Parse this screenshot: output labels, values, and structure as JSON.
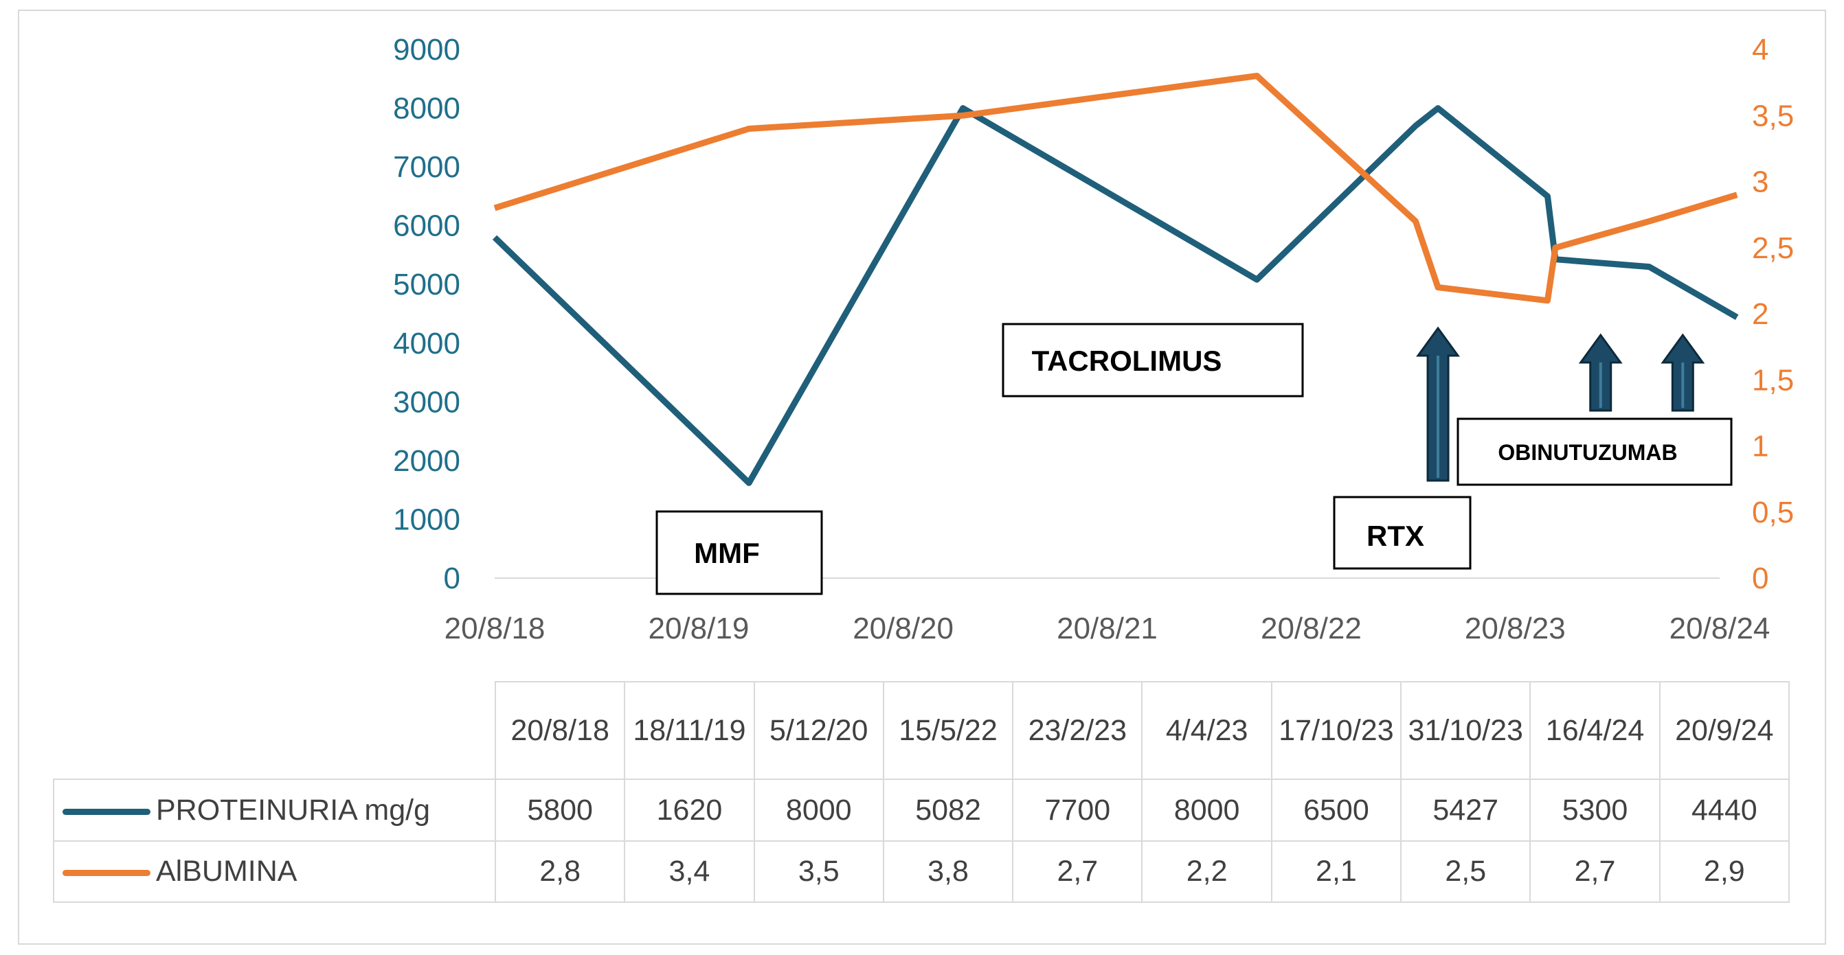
{
  "chart_data": {
    "type": "line",
    "x_dates": [
      "20/8/18",
      "18/11/19",
      "5/12/20",
      "15/5/22",
      "23/2/23",
      "4/4/23",
      "17/10/23",
      "31/10/23",
      "16/4/24",
      "20/9/24"
    ],
    "x_date_iso": [
      "2018-08-20",
      "2019-11-18",
      "2020-12-05",
      "2022-05-15",
      "2023-02-23",
      "2023-04-04",
      "2023-10-17",
      "2023-10-31",
      "2024-04-16",
      "2024-09-20"
    ],
    "xtick_labels": [
      "20/8/18",
      "20/8/19",
      "20/8/20",
      "20/8/21",
      "20/8/22",
      "20/8/23",
      "20/8/24"
    ],
    "xtick_iso": [
      "2018-08-20",
      "2019-08-20",
      "2020-08-20",
      "2021-08-20",
      "2022-08-20",
      "2023-08-20",
      "2024-08-20"
    ],
    "series": [
      {
        "name": "PROTEINURIA mg/g",
        "color": "#1f5f7a",
        "axis": "left",
        "values": [
          5800,
          1620,
          8000,
          5082,
          7700,
          8000,
          6500,
          5427,
          5300,
          4440
        ]
      },
      {
        "name": "AlBUMINA",
        "color": "#ed7d31",
        "axis": "right",
        "values": [
          2.8,
          3.4,
          3.5,
          3.8,
          2.7,
          2.2,
          2.1,
          2.5,
          2.7,
          2.9
        ]
      }
    ],
    "y_left": {
      "min": 0,
      "max": 9000,
      "ticks": [
        "0",
        "1000",
        "2000",
        "3000",
        "4000",
        "5000",
        "6000",
        "7000",
        "8000",
        "9000"
      ],
      "color": "#1f6f8b"
    },
    "y_right": {
      "min": 0,
      "max": 4,
      "ticks": [
        "0",
        "0,5",
        "1",
        "1,5",
        "2",
        "2,5",
        "3",
        "3,5",
        "4"
      ],
      "color": "#ed7d31"
    },
    "grid": false,
    "legend": "table-below",
    "annotations": [
      {
        "text": "MMF",
        "kind": "box"
      },
      {
        "text": "TACROLIMUS",
        "kind": "box"
      },
      {
        "text": "RTX",
        "kind": "box-with-arrow",
        "arrow_at": "2023-04-04"
      },
      {
        "text": "OBINUTUZUMAB",
        "kind": "box-with-arrows",
        "arrows_at": [
          "2024-01-20",
          "2024-06-15"
        ]
      }
    ],
    "arrow_color": "#1c4a66"
  }
}
